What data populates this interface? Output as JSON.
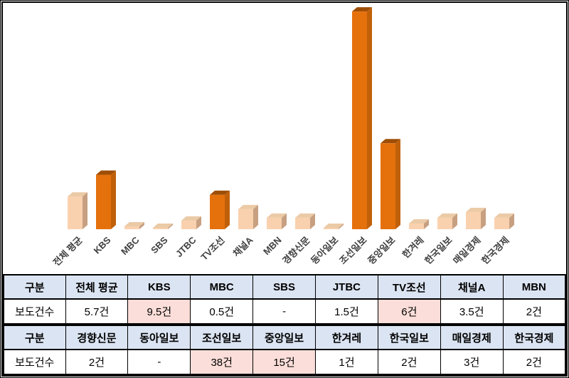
{
  "chart_data": {
    "type": "bar",
    "title": "",
    "xlabel": "",
    "ylabel": "",
    "unit": "건",
    "grid": false,
    "legend": "none",
    "ylim": [
      0,
      38
    ],
    "categories": [
      "전체 평균",
      "KBS",
      "MBC",
      "SBS",
      "JTBC",
      "TV조선",
      "채널A",
      "MBN",
      "경향신문",
      "동아일보",
      "조선일보",
      "중앙일보",
      "한겨레",
      "한국일보",
      "매일경제",
      "한국경제"
    ],
    "values": [
      5.7,
      9.5,
      0.5,
      0,
      1.5,
      6,
      3.5,
      2,
      2,
      0,
      38,
      15,
      1,
      2,
      3,
      2
    ],
    "display_values": [
      "5.7건",
      "9.5건",
      "0.5건",
      "-",
      "1.5건",
      "6건",
      "3.5건",
      "2건",
      "2건",
      "-",
      "38건",
      "15건",
      "1건",
      "2건",
      "3건",
      "2건"
    ],
    "highlighted": [
      false,
      true,
      false,
      false,
      false,
      true,
      false,
      false,
      false,
      false,
      true,
      true,
      false,
      false,
      false,
      false
    ],
    "bar_colors": {
      "normal": {
        "front": "#FAD1AE",
        "top": "#EBCAA6",
        "side": "#C7A081"
      },
      "highlight": {
        "front": "#E5710D",
        "top": "#9E4E06",
        "side": "#C06009"
      }
    },
    "label_color": "#404040"
  },
  "tables": [
    {
      "header_label": "구분",
      "row_label": "보도건수",
      "columns": [
        {
          "name": "전체 평균",
          "value": "5.7건",
          "highlight": false
        },
        {
          "name": "KBS",
          "value": "9.5건",
          "highlight": true
        },
        {
          "name": "MBC",
          "value": "0.5건",
          "highlight": false
        },
        {
          "name": "SBS",
          "value": "-",
          "highlight": false
        },
        {
          "name": "JTBC",
          "value": "1.5건",
          "highlight": false
        },
        {
          "name": "TV조선",
          "value": "6건",
          "highlight": true
        },
        {
          "name": "채널A",
          "value": "3.5건",
          "highlight": false
        },
        {
          "name": "MBN",
          "value": "2건",
          "highlight": false
        }
      ]
    },
    {
      "header_label": "구분",
      "row_label": "보도건수",
      "columns": [
        {
          "name": "경향신문",
          "value": "2건",
          "highlight": false
        },
        {
          "name": "동아일보",
          "value": "-",
          "highlight": false
        },
        {
          "name": "조선일보",
          "value": "38건",
          "highlight": true
        },
        {
          "name": "중앙일보",
          "value": "15건",
          "highlight": true
        },
        {
          "name": "한겨레",
          "value": "1건",
          "highlight": false
        },
        {
          "name": "한국일보",
          "value": "2건",
          "highlight": false
        },
        {
          "name": "매일경제",
          "value": "3건",
          "highlight": false
        },
        {
          "name": "한국경제",
          "value": "2건",
          "highlight": false
        }
      ]
    }
  ],
  "colors": {
    "table_header_bg": "#DBE4F2",
    "table_highlight_bg": "#FBDED9",
    "table_border": "#000000",
    "frame_border": "#000000",
    "bar_normal": "#FAD1AE",
    "bar_highlight": "#E5710D",
    "chart_label": "#404040"
  }
}
